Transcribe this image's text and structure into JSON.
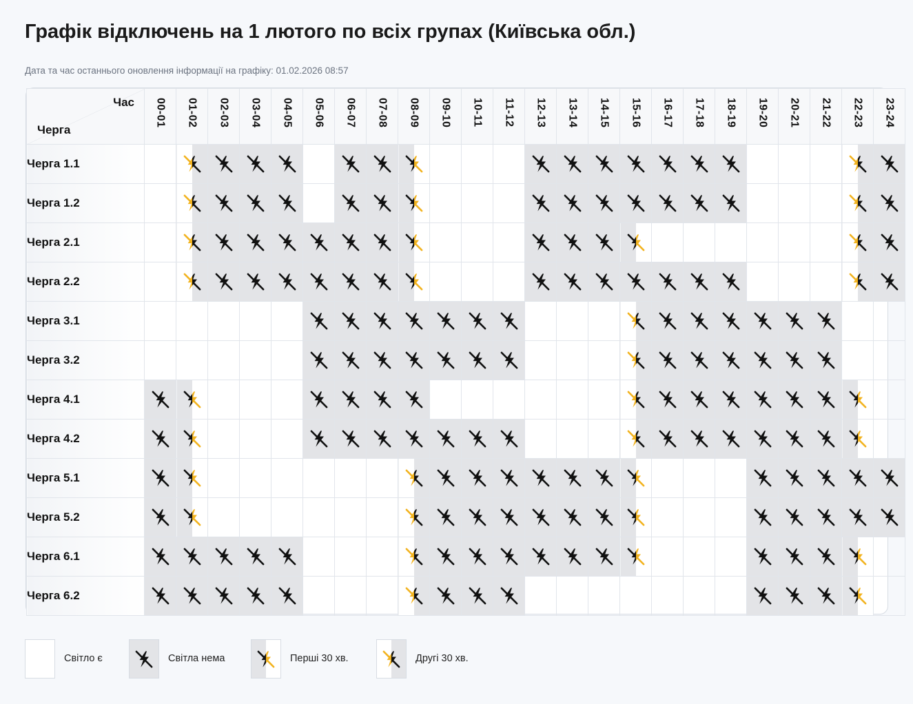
{
  "title": "Графік відключень на 1 лютого по всіх групах (Київська обл.)",
  "updated_text": "Дата та час останнього оновлення інформації на графіку: 01.02.2026 08:57",
  "colors": {
    "off_bg": "#e3e4e7",
    "accent": "#f2b31f",
    "icon": "#111111"
  },
  "table": {
    "corner_time": "Час",
    "corner_queue": "Черга",
    "hours": [
      "00-01",
      "01-02",
      "02-03",
      "03-04",
      "04-05",
      "05-06",
      "06-07",
      "07-08",
      "08-09",
      "09-10",
      "10-11",
      "11-12",
      "12-13",
      "13-14",
      "14-15",
      "15-16",
      "16-17",
      "17-18",
      "18-19",
      "19-20",
      "20-21",
      "21-22",
      "22-23",
      "23-24"
    ],
    "status_legend": {
      "n": "Світло є",
      "o": "Світла нема",
      "f": "Перші 30 хв.",
      "s": "Другі 30 хв."
    },
    "rows": [
      {
        "label": "Черга 1.1",
        "states": [
          "n",
          "s",
          "o",
          "o",
          "o",
          "n",
          "o",
          "o",
          "f",
          "n",
          "n",
          "n",
          "o",
          "o",
          "o",
          "o",
          "o",
          "o",
          "o",
          "n",
          "n",
          "n",
          "s",
          "o"
        ]
      },
      {
        "label": "Черга 1.2",
        "states": [
          "n",
          "s",
          "o",
          "o",
          "o",
          "n",
          "o",
          "o",
          "f",
          "n",
          "n",
          "n",
          "o",
          "o",
          "o",
          "o",
          "o",
          "o",
          "o",
          "n",
          "n",
          "n",
          "s",
          "o"
        ]
      },
      {
        "label": "Черга 2.1",
        "states": [
          "n",
          "s",
          "o",
          "o",
          "o",
          "o",
          "o",
          "o",
          "f",
          "n",
          "n",
          "n",
          "o",
          "o",
          "o",
          "f",
          "n",
          "n",
          "n",
          "n",
          "n",
          "n",
          "s",
          "o"
        ]
      },
      {
        "label": "Черга 2.2",
        "states": [
          "n",
          "s",
          "o",
          "o",
          "o",
          "o",
          "o",
          "o",
          "f",
          "n",
          "n",
          "n",
          "o",
          "o",
          "o",
          "o",
          "o",
          "o",
          "o",
          "n",
          "n",
          "n",
          "s",
          "o"
        ]
      },
      {
        "label": "Черга 3.1",
        "states": [
          "n",
          "n",
          "n",
          "n",
          "n",
          "o",
          "o",
          "o",
          "o",
          "o",
          "o",
          "o",
          "n",
          "n",
          "n",
          "s",
          "o",
          "o",
          "o",
          "o",
          "o",
          "o",
          "n",
          "n"
        ]
      },
      {
        "label": "Черга 3.2",
        "states": [
          "n",
          "n",
          "n",
          "n",
          "n",
          "o",
          "o",
          "o",
          "o",
          "o",
          "o",
          "o",
          "n",
          "n",
          "n",
          "s",
          "o",
          "o",
          "o",
          "o",
          "o",
          "o",
          "n",
          "n"
        ]
      },
      {
        "label": "Черга 4.1",
        "states": [
          "o",
          "f",
          "n",
          "n",
          "n",
          "o",
          "o",
          "o",
          "o",
          "n",
          "n",
          "n",
          "n",
          "n",
          "n",
          "s",
          "o",
          "o",
          "o",
          "o",
          "o",
          "o",
          "f",
          "n"
        ]
      },
      {
        "label": "Черга 4.2",
        "states": [
          "o",
          "f",
          "n",
          "n",
          "n",
          "o",
          "o",
          "o",
          "o",
          "o",
          "o",
          "o",
          "n",
          "n",
          "n",
          "s",
          "o",
          "o",
          "o",
          "o",
          "o",
          "o",
          "f",
          "n"
        ]
      },
      {
        "label": "Черга 5.1",
        "states": [
          "o",
          "f",
          "n",
          "n",
          "n",
          "n",
          "n",
          "n",
          "s",
          "o",
          "o",
          "o",
          "o",
          "o",
          "o",
          "f",
          "n",
          "n",
          "n",
          "o",
          "o",
          "o",
          "o",
          "o"
        ]
      },
      {
        "label": "Черга 5.2",
        "states": [
          "o",
          "f",
          "n",
          "n",
          "n",
          "n",
          "n",
          "n",
          "s",
          "o",
          "o",
          "o",
          "o",
          "o",
          "o",
          "f",
          "n",
          "n",
          "n",
          "o",
          "o",
          "o",
          "o",
          "o"
        ]
      },
      {
        "label": "Черга 6.1",
        "states": [
          "o",
          "o",
          "o",
          "o",
          "o",
          "n",
          "n",
          "n",
          "s",
          "o",
          "o",
          "o",
          "o",
          "o",
          "o",
          "f",
          "n",
          "n",
          "n",
          "o",
          "o",
          "o",
          "f",
          "n"
        ]
      },
      {
        "label": "Черга 6.2",
        "states": [
          "o",
          "o",
          "o",
          "o",
          "o",
          "n",
          "n",
          "n",
          "s",
          "o",
          "o",
          "o",
          "n",
          "n",
          "n",
          "n",
          "n",
          "n",
          "n",
          "o",
          "o",
          "o",
          "f",
          "n"
        ]
      }
    ]
  },
  "legend": [
    {
      "type": "n",
      "label": "Світло є"
    },
    {
      "type": "o",
      "label": "Світла нема"
    },
    {
      "type": "f",
      "label": "Перші 30 хв."
    },
    {
      "type": "s",
      "label": "Другі 30 хв."
    }
  ]
}
